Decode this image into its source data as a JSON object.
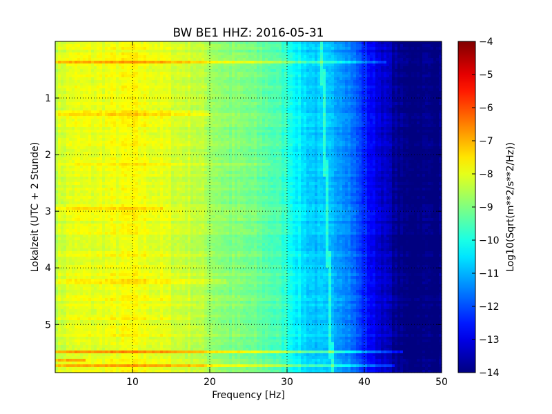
{
  "chart_data": {
    "type": "heatmap",
    "title": "BW BE1 HHZ: 2016-05-31",
    "xlabel": "Frequency [Hz]",
    "ylabel": "Lokalzeit (UTC + 2 Stunde)",
    "xlim": [
      0,
      50
    ],
    "ylim": [
      5.85,
      0.0
    ],
    "x_ticks": [
      10,
      20,
      30,
      40,
      50
    ],
    "x_tick_labels": [
      "10",
      "20",
      "30",
      "40",
      "50"
    ],
    "y_ticks": [
      1,
      2,
      3,
      4,
      5
    ],
    "y_tick_labels": [
      "1",
      "2",
      "3",
      "4",
      "5"
    ],
    "grid": true,
    "colorbar": {
      "label": "Log10(Sqrt(m**2/s**2/Hz))",
      "range": [
        -14,
        -4
      ],
      "ticks": [
        -4,
        -5,
        -6,
        -7,
        -8,
        -9,
        -10,
        -11,
        -12,
        -13,
        -14
      ],
      "tick_labels": [
        "−4",
        "−5",
        "−6",
        "−7",
        "−8",
        "−9",
        "−10",
        "−11",
        "−12",
        "−13",
        "−14"
      ],
      "colormap": "jet"
    },
    "spectral_profile": {
      "frequency_hz": [
        0,
        2,
        5,
        8,
        10,
        12,
        15,
        18,
        20,
        22,
        25,
        28,
        30,
        31,
        32,
        33,
        35,
        37,
        38,
        39,
        40,
        41,
        42,
        43,
        44,
        45,
        50
      ],
      "log_psd": [
        -8.3,
        -8.0,
        -8.0,
        -7.9,
        -7.8,
        -7.9,
        -8.1,
        -8.3,
        -8.6,
        -8.9,
        -9.1,
        -9.4,
        -9.8,
        -10.2,
        -10.5,
        -10.7,
        -10.9,
        -11.1,
        -11.4,
        -11.9,
        -12.4,
        -12.8,
        -13.1,
        -13.4,
        -13.8,
        -14.0,
        -14.0
      ]
    },
    "events": [
      {
        "time_h": 0.37,
        "fmax_hz": 43,
        "delta": 0.9
      },
      {
        "time_h": 1.27,
        "fmax_hz": 20,
        "delta": 0.4
      },
      {
        "time_h": 2.16,
        "fmax_hz": 28,
        "delta": 0.3
      },
      {
        "time_h": 2.95,
        "fmax_hz": 14,
        "delta": 0.4
      },
      {
        "time_h": 4.25,
        "fmax_hz": 22,
        "delta": 0.3
      },
      {
        "time_h": 4.9,
        "fmax_hz": 18,
        "delta": 0.3
      },
      {
        "time_h": 5.48,
        "fmax_hz": 45,
        "delta": 1.3
      },
      {
        "time_h": 5.62,
        "fmax_hz": 4,
        "delta": 1.0
      },
      {
        "time_h": 5.72,
        "fmax_hz": 44,
        "delta": 1.0
      }
    ],
    "line_feature": {
      "start_hz": 34.5,
      "end_hz": 35.8,
      "delta": 0.9
    }
  }
}
